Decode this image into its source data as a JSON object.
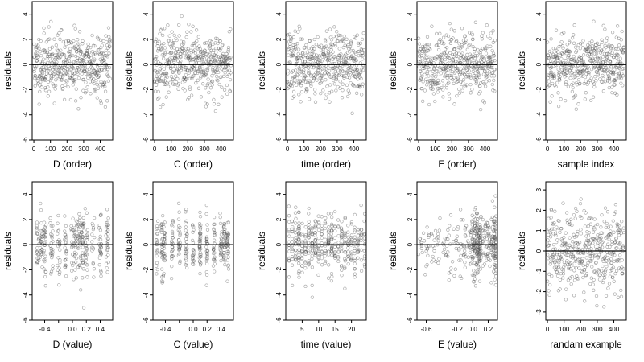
{
  "figure": {
    "description_free": true
  },
  "chart_data": [
    {
      "type": "scatter",
      "xlabel": "D (order)",
      "ylabel": "residuals",
      "xlim": [
        -10,
        475
      ],
      "ylim": [
        -6,
        5
      ],
      "xticks": [
        0,
        100,
        200,
        300,
        400
      ],
      "yticks": [
        -6,
        -4,
        -2,
        0,
        2,
        4
      ],
      "hline": 0,
      "gen": {
        "kind": "order",
        "seed": 11,
        "n": 460,
        "xmax": 460,
        "sd": 1.25
      }
    },
    {
      "type": "scatter",
      "xlabel": "C (order)",
      "ylabel": "residuals",
      "xlim": [
        -10,
        475
      ],
      "ylim": [
        -6,
        5
      ],
      "xticks": [
        0,
        100,
        200,
        300,
        400
      ],
      "yticks": [
        -6,
        -4,
        -2,
        0,
        2,
        4
      ],
      "hline": 0,
      "gen": {
        "kind": "order",
        "seed": 23,
        "n": 460,
        "xmax": 460,
        "sd": 1.25
      }
    },
    {
      "type": "scatter",
      "xlabel": "time (order)",
      "ylabel": "residuals",
      "xlim": [
        -10,
        475
      ],
      "ylim": [
        -6,
        5
      ],
      "xticks": [
        0,
        100,
        200,
        300,
        400
      ],
      "yticks": [
        -6,
        -4,
        -2,
        0,
        2,
        4
      ],
      "hline": 0,
      "gen": {
        "kind": "order",
        "seed": 37,
        "n": 460,
        "xmax": 460,
        "sd": 1.25
      }
    },
    {
      "type": "scatter",
      "xlabel": "E (order)",
      "ylabel": "residuals",
      "xlim": [
        -10,
        475
      ],
      "ylim": [
        -6,
        5
      ],
      "xticks": [
        0,
        100,
        200,
        300,
        400
      ],
      "yticks": [
        -6,
        -4,
        -2,
        0,
        2,
        4
      ],
      "hline": 0,
      "gen": {
        "kind": "order",
        "seed": 41,
        "n": 460,
        "xmax": 460,
        "sd": 1.25
      }
    },
    {
      "type": "scatter",
      "xlabel": "sample index",
      "ylabel": "residuals",
      "xlim": [
        -10,
        475
      ],
      "ylim": [
        -6,
        5
      ],
      "xticks": [
        0,
        100,
        200,
        300,
        400
      ],
      "yticks": [
        -6,
        -4,
        -2,
        0,
        2,
        4
      ],
      "hline": 0,
      "gen": {
        "kind": "order",
        "seed": 53,
        "n": 460,
        "xmax": 460,
        "sd": 1.25
      }
    },
    {
      "type": "scatter",
      "xlabel": "D (value)",
      "ylabel": "residuals",
      "xlim": [
        -0.58,
        0.58
      ],
      "ylim": [
        -6,
        5
      ],
      "xticks": [
        -0.4,
        -0.2,
        0,
        0.2,
        0.4
      ],
      "xticklabels": [
        "-0.4",
        "0.0",
        "0.2",
        "0.4"
      ],
      "xtickshow": [
        -0.4,
        0,
        0.2,
        0.4
      ],
      "yticks": [
        -6,
        -4,
        -2,
        0,
        2,
        4
      ],
      "hline": 0,
      "gen": {
        "kind": "clusters",
        "seed": 61,
        "n": 360,
        "centers": [
          -0.5,
          -0.45,
          -0.4,
          -0.3,
          -0.2,
          -0.1,
          0,
          0.05,
          0.1,
          0.15,
          0.2,
          0.3,
          0.4,
          0.5
        ],
        "spread": 0.02,
        "sd": 1.25
      }
    },
    {
      "type": "scatter",
      "xlabel": "C (value)",
      "ylabel": "residuals",
      "xlim": [
        -0.58,
        0.58
      ],
      "ylim": [
        -6,
        5
      ],
      "xticks": [
        -0.4,
        -0.2,
        0,
        0.2,
        0.4
      ],
      "xticklabels": [
        "-0.4",
        "0.0",
        "0.2",
        "0.4"
      ],
      "xtickshow": [
        -0.4,
        0,
        0.2,
        0.4
      ],
      "yticks": [
        -6,
        -4,
        -2,
        0,
        2,
        4
      ],
      "hline": 0,
      "gen": {
        "kind": "clusters",
        "seed": 71,
        "n": 360,
        "centers": [
          -0.52,
          -0.45,
          -0.42,
          -0.3,
          -0.2,
          -0.1,
          0,
          0.1,
          0.2,
          0.3,
          0.4,
          0.45,
          0.5
        ],
        "spread": 0.012,
        "sd": 1.2
      }
    },
    {
      "type": "scatter",
      "xlabel": "time (value)",
      "ylabel": "residuals",
      "xlim": [
        0,
        24.5
      ],
      "ylim": [
        -6,
        5
      ],
      "xticks": [
        5,
        10,
        15,
        20
      ],
      "yticks": [
        -6,
        -4,
        -2,
        0,
        2,
        4
      ],
      "hline": 0,
      "gen": {
        "kind": "clusters",
        "seed": 83,
        "n": 420,
        "centers": [
          1,
          2,
          3,
          4,
          5,
          6,
          7,
          8,
          9,
          10,
          11,
          12,
          13,
          14,
          15,
          16,
          17,
          18,
          19,
          20,
          21,
          22,
          23,
          24
        ],
        "spread": 0.08,
        "sd": 1.25
      }
    },
    {
      "type": "scatter",
      "xlabel": "E (value)",
      "ylabel": "residuals",
      "xlim": [
        -0.72,
        0.32
      ],
      "ylim": [
        -6,
        5
      ],
      "xticks": [
        -0.6,
        -0.2,
        0,
        0.2
      ],
      "xticklabels": [
        "-0.6",
        "-0.2",
        "0.0",
        "0.2"
      ],
      "yticks": [
        -6,
        -4,
        -2,
        0,
        2,
        4
      ],
      "hline": 0,
      "gen": {
        "kind": "skew",
        "seed": 97,
        "n": 420,
        "sd": 1.25
      }
    },
    {
      "type": "scatter",
      "xlabel": "randam example",
      "ylabel": "residuals",
      "xlim": [
        -10,
        475
      ],
      "ylim": [
        -3.4,
        3.4
      ],
      "xticks": [
        0,
        100,
        200,
        300,
        400
      ],
      "yticks": [
        -3,
        -2,
        -1,
        0,
        1,
        2,
        3
      ],
      "hline": 0,
      "gen": {
        "kind": "order",
        "seed": 101,
        "n": 420,
        "xmax": 460,
        "sd": 1.0
      }
    }
  ]
}
